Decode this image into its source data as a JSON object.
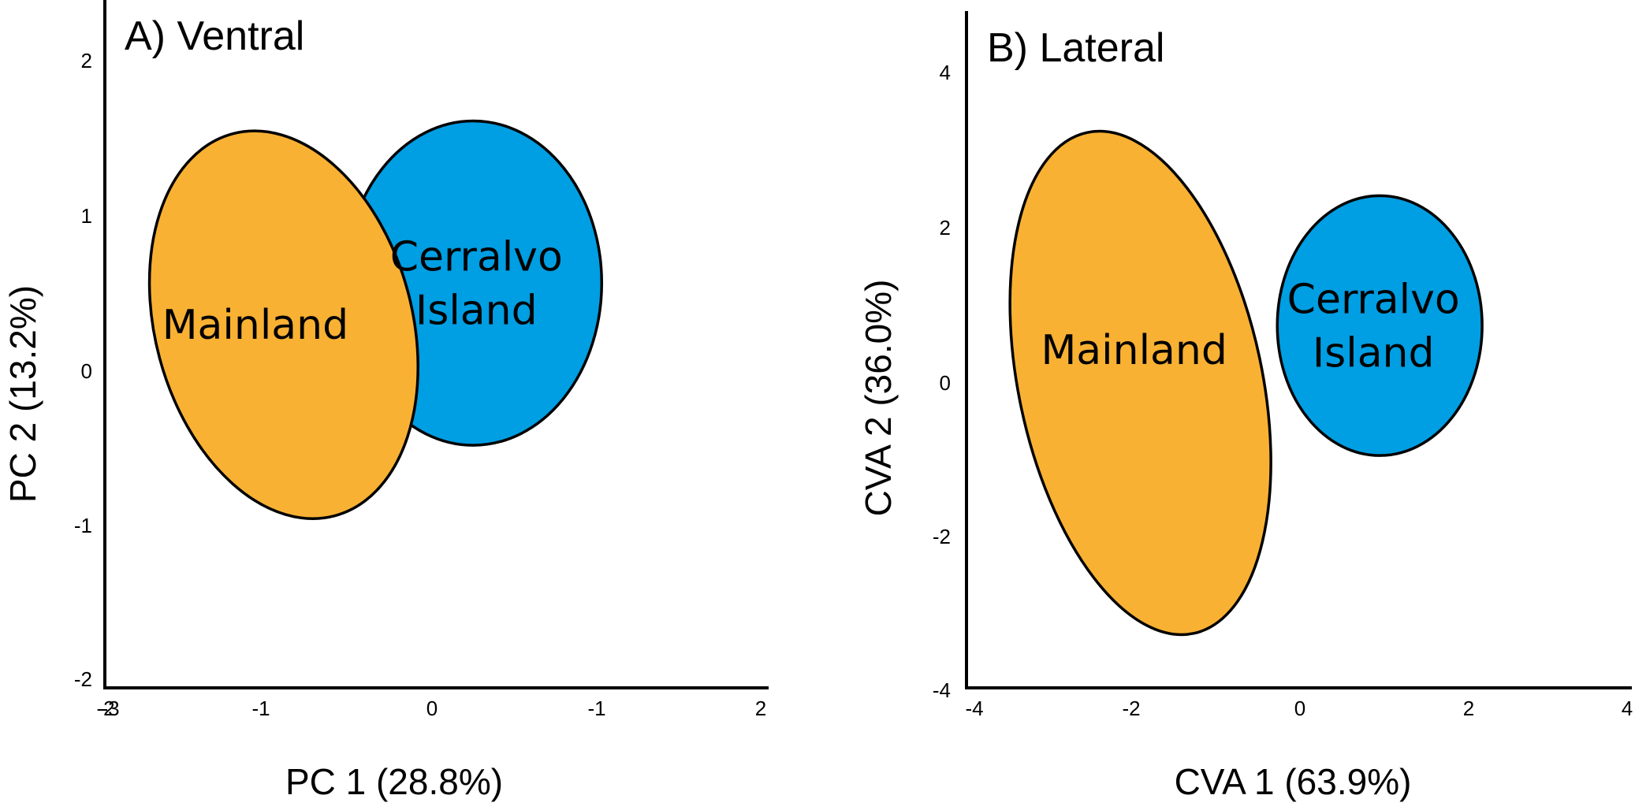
{
  "chart_data": [
    {
      "type": "scatter",
      "title": "A) Ventral",
      "xlabel": "PC 1 (28.8%)",
      "ylabel": "PC 2 (13.2%)",
      "x_tick_labels": [
        "-2",
        "-3",
        "-1",
        "0",
        "-1",
        "2"
      ],
      "y_tick_labels": [
        "2",
        "1",
        "0",
        "-1",
        "-2"
      ],
      "series": [
        {
          "name": "Mainland",
          "label_lines": [
            "Mainland"
          ],
          "color": "#F8B133",
          "ellipse": {
            "cx": -0.9,
            "cy": 0.3,
            "rx": 0.78,
            "ry": 1.28,
            "rotation_deg": -15
          }
        },
        {
          "name": "Cerralvo Island",
          "label_lines": [
            "Cerralvo",
            "Island"
          ],
          "color": "#009EE2",
          "ellipse": {
            "cx": 0.25,
            "cy": 0.57,
            "rx": 0.78,
            "ry": 1.05,
            "rotation_deg": 0
          }
        }
      ],
      "ellipse_order": [
        "Cerralvo Island",
        "Mainland"
      ]
    },
    {
      "type": "scatter",
      "title": "B) Lateral",
      "xlabel": "CVA 1 (63.9%)",
      "ylabel": "CVA 2 (36.0%)",
      "x_tick_labels": [
        "-4",
        "-2",
        "0",
        "2",
        "4"
      ],
      "y_tick_labels": [
        "4",
        "2",
        "0",
        "-2",
        "-4"
      ],
      "series": [
        {
          "name": "Mainland",
          "label_lines": [
            "Mainland"
          ],
          "color": "#F8B133",
          "ellipse": {
            "cx": -1.9,
            "cy": 0.0,
            "rx": 1.45,
            "ry": 3.35,
            "rotation_deg": -12
          }
        },
        {
          "name": "Cerralvo Island",
          "label_lines": [
            "Cerralvo",
            "Island"
          ],
          "color": "#009EE2",
          "ellipse": {
            "cx": 0.95,
            "cy": 0.75,
            "rx": 1.22,
            "ry": 1.7,
            "rotation_deg": 0
          }
        }
      ],
      "ellipse_order": [
        "Mainland",
        "Cerralvo Island"
      ]
    }
  ]
}
